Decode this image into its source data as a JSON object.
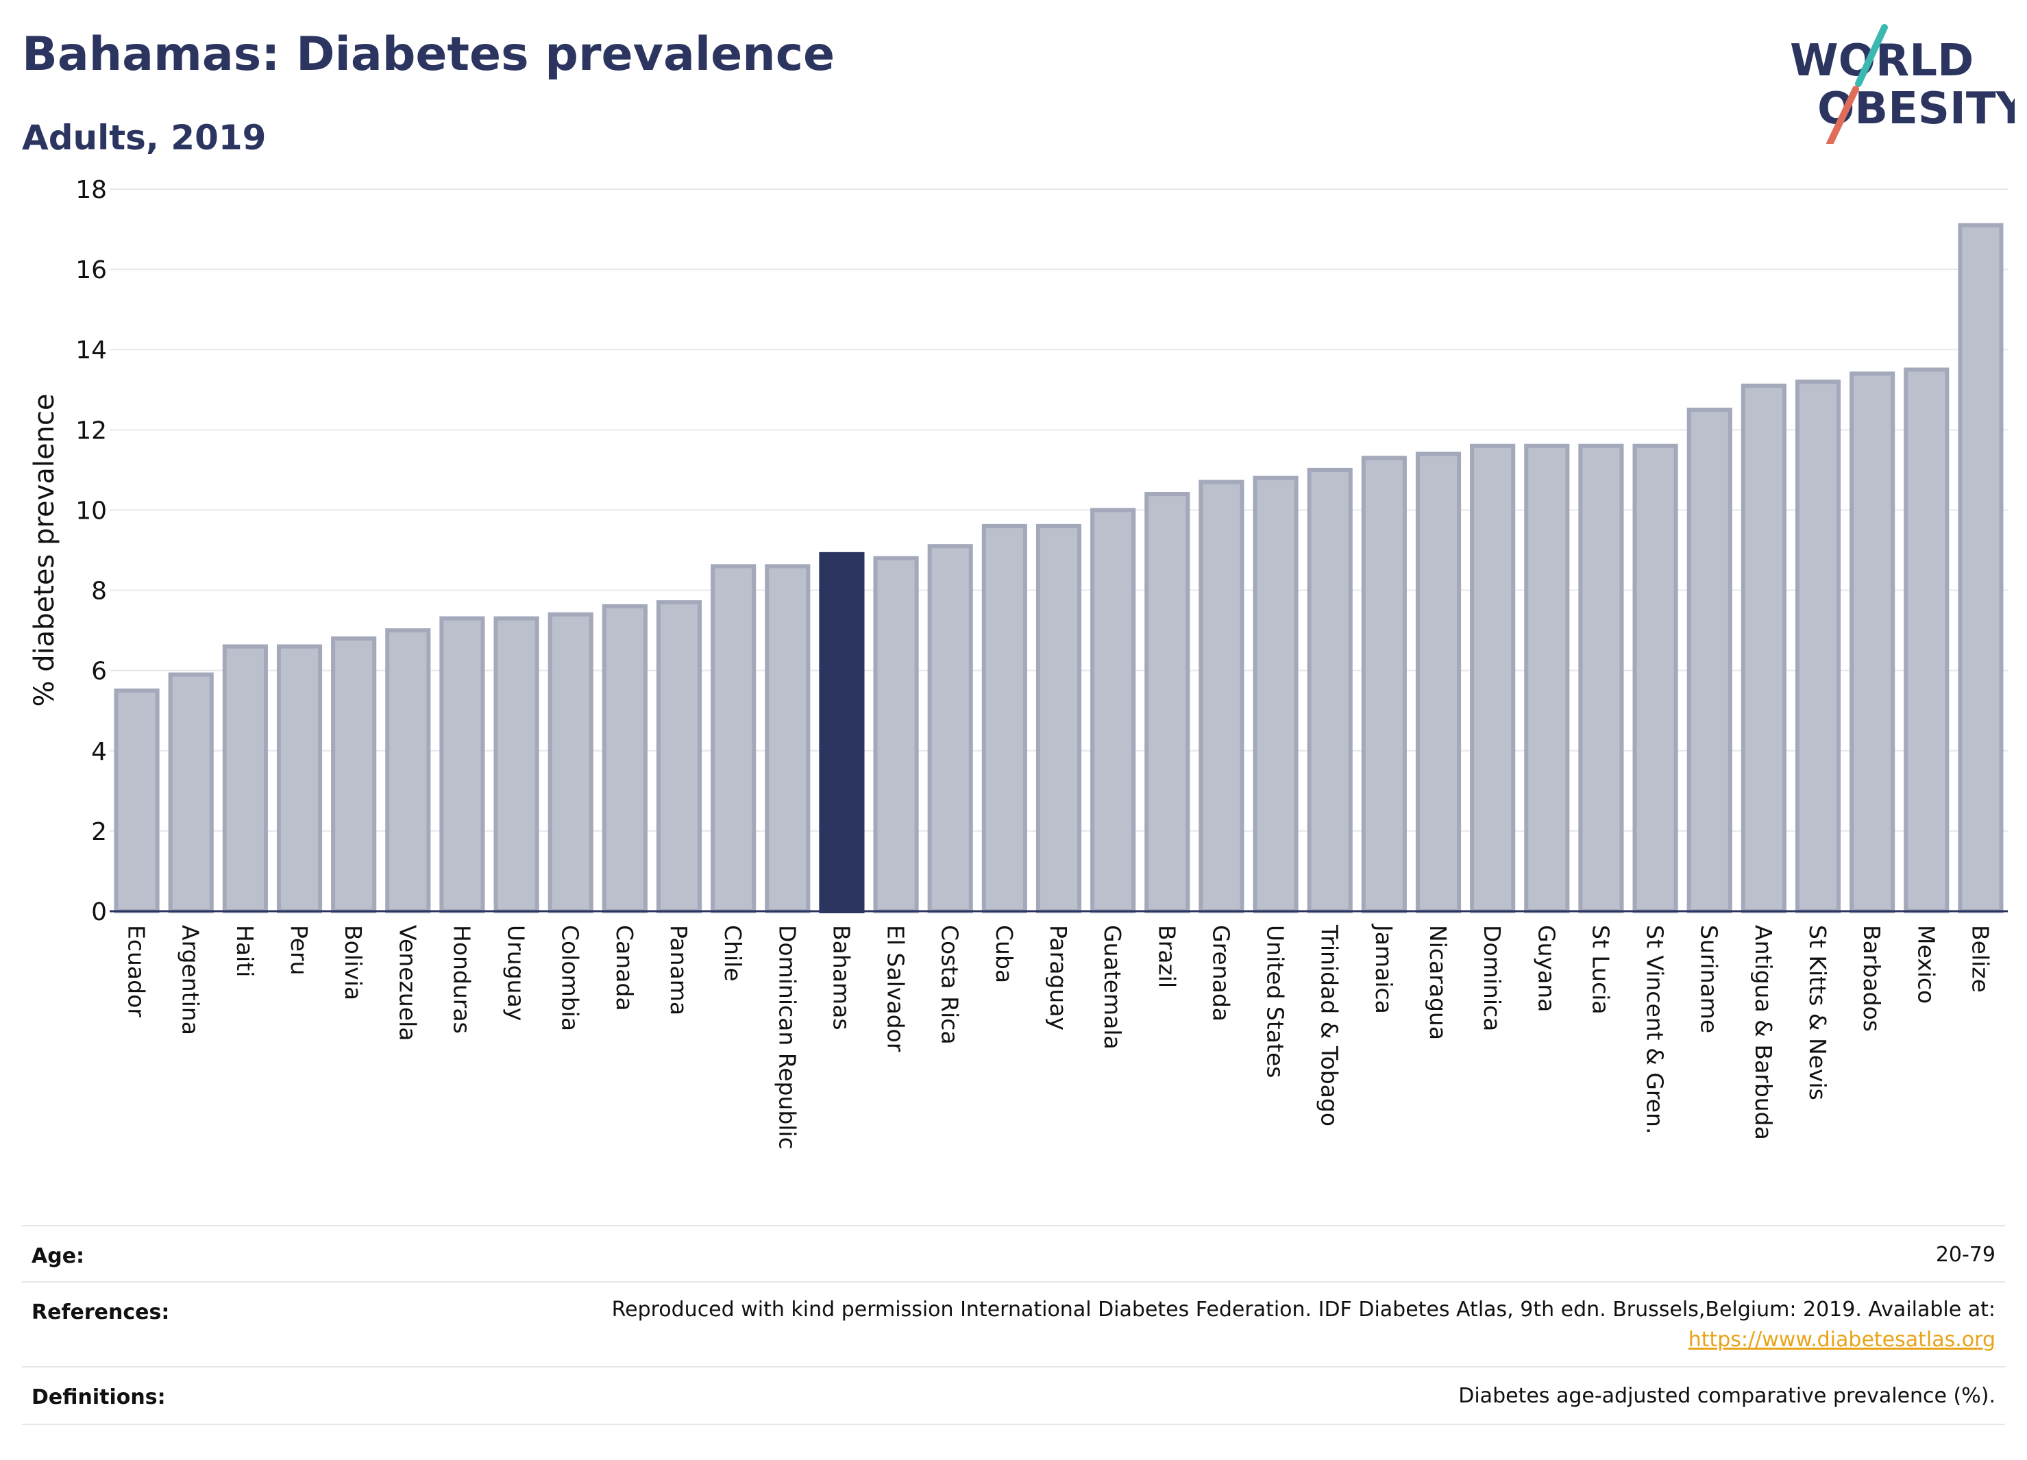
{
  "header": {
    "title": "Bahamas: Diabetes prevalence",
    "subtitle": "Adults, 2019"
  },
  "logo": {
    "line1": "WORLD",
    "line2": "OBESITY",
    "slash_top_color": "#3bb8b1",
    "slash_bottom_color": "#e06c5a",
    "text_color": "#2b3560"
  },
  "chart_data": {
    "type": "bar",
    "title": "Bahamas: Diabetes prevalence",
    "subtitle": "Adults, 2019",
    "ylabel": "% diabetes prevalence",
    "xlabel": "",
    "ylim": [
      0,
      18
    ],
    "yticks": [
      0,
      2,
      4,
      6,
      8,
      10,
      12,
      14,
      16,
      18
    ],
    "grid": true,
    "highlight": "Bahamas",
    "colors": {
      "bar": "#bcc0cd",
      "bar_edge": "#a3a8bb",
      "highlight": "#2b3560"
    },
    "categories": [
      "Ecuador",
      "Argentina",
      "Haiti",
      "Peru",
      "Bolivia",
      "Venezuela",
      "Honduras",
      "Uruguay",
      "Colombia",
      "Canada",
      "Panama",
      "Chile",
      "Dominican Republic",
      "Bahamas",
      "El Salvador",
      "Costa Rica",
      "Cuba",
      "Paraguay",
      "Guatemala",
      "Brazil",
      "Grenada",
      "United States",
      "Trinidad & Tobago",
      "Jamaica",
      "Nicaragua",
      "Dominica",
      "Guyana",
      "St Lucia",
      "St Vincent & Gren.",
      "Suriname",
      "Antigua & Barbuda",
      "St Kitts & Nevis",
      "Barbados",
      "Mexico",
      "Belize"
    ],
    "values": [
      5.5,
      5.9,
      6.6,
      6.6,
      6.8,
      7.0,
      7.3,
      7.3,
      7.4,
      7.6,
      7.7,
      8.6,
      8.6,
      8.9,
      8.8,
      9.1,
      9.6,
      9.6,
      10.0,
      10.4,
      10.7,
      10.8,
      11.0,
      11.3,
      11.4,
      11.6,
      11.6,
      11.6,
      11.6,
      12.5,
      13.1,
      13.2,
      13.4,
      13.5,
      17.1
    ]
  },
  "info": {
    "age_label": "Age:",
    "age_value": "20-79",
    "references_label": "References:",
    "references_text": "Reproduced with kind permission International Diabetes Federation. IDF Diabetes Atlas, 9th edn. Brussels,Belgium: 2019. Available at:",
    "references_link": "https://www.diabetesatlas.org",
    "definitions_label": "Definitions:",
    "definitions_value": "Diabetes age-adjusted comparative prevalence (%)."
  }
}
